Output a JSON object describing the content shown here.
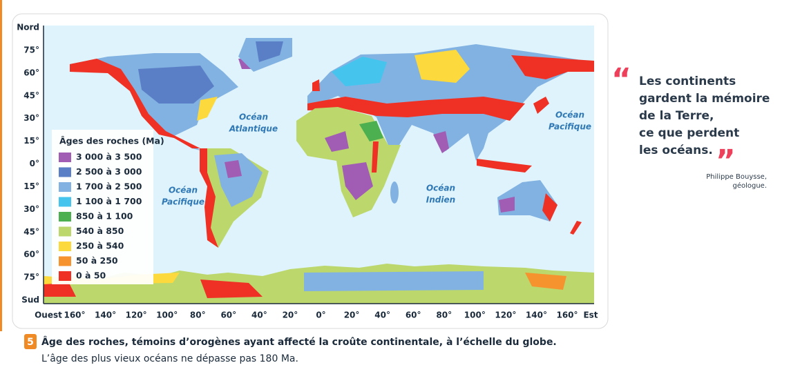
{
  "map": {
    "y_labels": [
      "Nord",
      "75°",
      "60°",
      "45°",
      "30°",
      "15°",
      "0°",
      "15°",
      "30°",
      "45°",
      "60°",
      "75°",
      "Sud"
    ],
    "x_labels": [
      "Ouest",
      "160°",
      "140°",
      "120°",
      "100°",
      "80°",
      "60°",
      "40°",
      "20°",
      "0°",
      "20°",
      "40°",
      "60°",
      "80°",
      "100°",
      "120°",
      "140°",
      "160°",
      "Est"
    ],
    "oceans": [
      {
        "lines": [
          "Océan",
          "Atlantique"
        ]
      },
      {
        "lines": [
          "Océan",
          "Pacifique"
        ]
      },
      {
        "lines": [
          "Océan",
          "Indien"
        ]
      },
      {
        "lines": [
          "Océan",
          "Pacifique"
        ]
      }
    ],
    "legend": {
      "title": "Âges des roches (Ma)",
      "items": [
        {
          "label": "3 000 à 3 500",
          "color": "#a15cb3"
        },
        {
          "label": "2 500 à 3 000",
          "color": "#5a7fc6"
        },
        {
          "label": "1 700 à 2 500",
          "color": "#82b2e2"
        },
        {
          "label": "1 100 à 1 700",
          "color": "#45c5ee"
        },
        {
          "label": "850 à 1 100",
          "color": "#4caf50"
        },
        {
          "label": "540 à 850",
          "color": "#bcd76c"
        },
        {
          "label": "250 à 540",
          "color": "#fcd93c"
        },
        {
          "label": "50 à 250",
          "color": "#f7932f"
        },
        {
          "label": "0 à 50",
          "color": "#ee3124"
        }
      ]
    }
  },
  "caption": {
    "number": "5",
    "title": "Âge des roches, témoins d’orogènes ayant affecté la croûte continentale, à l’échelle du globe.",
    "text": "L’âge des plus vieux océans ne dépasse pas 180 Ma."
  },
  "quote": {
    "open": "“",
    "close": "”",
    "lines": [
      "Les continents",
      "gardent la mémoire",
      "de la Terre,",
      "ce que perdent",
      "les océans."
    ],
    "author": [
      "Philippe Bouysse,",
      "géologue."
    ]
  }
}
